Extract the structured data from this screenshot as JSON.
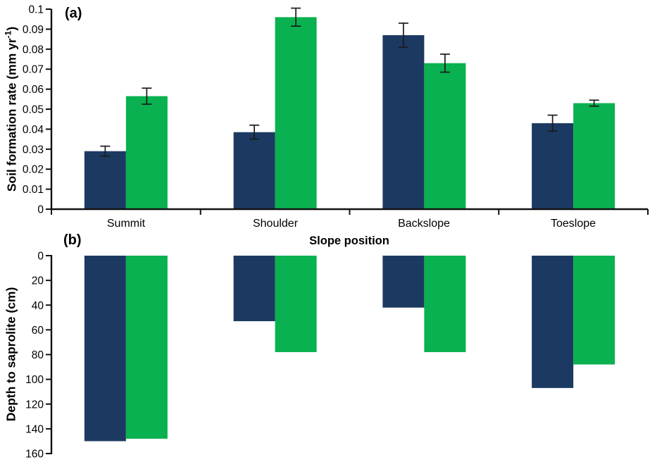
{
  "figure": {
    "panel_a_label": "(a)",
    "panel_b_label": "(b)",
    "x_axis_title": "Slope position",
    "categories": [
      "Summit",
      "Shoulder",
      "Backslope",
      "Toeslope"
    ]
  },
  "colors": {
    "series_dark_blue": "#1C3A61",
    "series_green": "#0AB150",
    "axis": "#111111",
    "error_bar": "#1a1a1a"
  },
  "chart_data": [
    {
      "type": "bar",
      "panel_label": "(a)",
      "title": "",
      "ylabel": "Soil formation rate (mm yr⁻¹)",
      "ylabel_parts": {
        "pre": "Soil formation rate (mm yr",
        "sup": "-1",
        "post": ")"
      },
      "xlabel": "Slope position",
      "categories": [
        "Summit",
        "Shoulder",
        "Backslope",
        "Toeslope"
      ],
      "series": [
        {
          "name": "dark-blue",
          "color": "#1C3A61",
          "values": [
            0.029,
            0.0385,
            0.087,
            0.043
          ],
          "errors": [
            0.0025,
            0.0035,
            0.006,
            0.004
          ]
        },
        {
          "name": "green",
          "color": "#0AB150",
          "values": [
            0.0565,
            0.096,
            0.073,
            0.053
          ],
          "errors": [
            0.004,
            0.0045,
            0.0045,
            0.0015
          ]
        }
      ],
      "ylim": [
        0,
        0.1
      ],
      "ytick_step": 0.01,
      "ytick_labels": [
        "0",
        "0.01",
        "0.02",
        "0.03",
        "0.04",
        "0.05",
        "0.06",
        "0.07",
        "0.08",
        "0.09",
        "0.1"
      ],
      "grid": false,
      "legend": "none",
      "error_bars": true
    },
    {
      "type": "bar",
      "panel_label": "(b)",
      "title": "",
      "ylabel": "Depth to saprolite (cm)",
      "xlabel": "",
      "categories": [
        "Summit",
        "Shoulder",
        "Backslope",
        "Toeslope"
      ],
      "series": [
        {
          "name": "dark-blue",
          "color": "#1C3A61",
          "values": [
            150,
            53,
            42,
            107
          ]
        },
        {
          "name": "green",
          "color": "#0AB150",
          "values": [
            148,
            78,
            78,
            88
          ]
        }
      ],
      "ylim": [
        0,
        160
      ],
      "ytick_step": 20,
      "ytick_labels": [
        "0",
        "20",
        "40",
        "60",
        "80",
        "100",
        "120",
        "140",
        "160"
      ],
      "y_axis_inverted": true,
      "bars_direction": "down",
      "grid": false,
      "legend": "none",
      "error_bars": false
    }
  ]
}
